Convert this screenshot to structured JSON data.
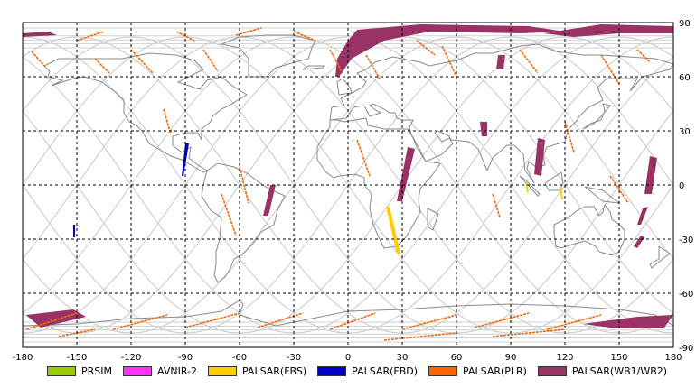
{
  "chart_data": {
    "type": "map",
    "title": "",
    "xlim": [
      -180,
      180
    ],
    "ylim": [
      -90,
      90
    ],
    "x_ticks": [
      "-180",
      "-150",
      "-120",
      "-90",
      "-60",
      "-30",
      "0",
      "30",
      "60",
      "90",
      "120",
      "150",
      "180"
    ],
    "y_ticks": [
      "90",
      "60",
      "30",
      "0",
      "-30",
      "-60",
      "-90"
    ],
    "grid": true,
    "legend_position": "bottom",
    "legend": [
      {
        "label": "PRSIM",
        "color": "#99cc00"
      },
      {
        "label": "AVNIR-2",
        "color": "#ff33ff"
      },
      {
        "label": "PALSAR(FBS)",
        "color": "#ffcc00"
      },
      {
        "label": "PALSAR(FBD)",
        "color": "#0000cc"
      },
      {
        "label": "PALSAR(PLR)",
        "color": "#ff6600"
      },
      {
        "label": "PALSAR(WB1/WB2)",
        "color": "#993366"
      }
    ],
    "coverage": [
      {
        "sensor": "PALSAR(WB1/WB2)",
        "polygon": [
          [
            -180,
            84
          ],
          [
            -166,
            85
          ],
          [
            -161,
            83
          ],
          [
            -180,
            82
          ]
        ]
      },
      {
        "sensor": "PALSAR(WB1/WB2)",
        "polygon": [
          [
            5,
            86
          ],
          [
            40,
            89
          ],
          [
            100,
            88
          ],
          [
            120,
            85
          ],
          [
            95,
            84
          ],
          [
            45,
            85
          ],
          [
            20,
            80
          ],
          [
            2,
            70
          ],
          [
            -5,
            60
          ],
          [
            -7,
            60
          ],
          [
            -6,
            70
          ],
          [
            0,
            80
          ]
        ]
      },
      {
        "sensor": "PALSAR(WB1/WB2)",
        "polygon": [
          [
            108,
            84
          ],
          [
            140,
            89
          ],
          [
            180,
            88
          ],
          [
            180,
            84
          ],
          [
            150,
            84
          ],
          [
            125,
            82
          ]
        ]
      },
      {
        "sensor": "PALSAR(WB1/WB2)",
        "polygon": [
          [
            83,
            72
          ],
          [
            87,
            72
          ],
          [
            86,
            64
          ],
          [
            82,
            64
          ]
        ]
      },
      {
        "sensor": "PALSAR(WB1/WB2)",
        "polygon": [
          [
            73,
            35
          ],
          [
            77,
            35
          ],
          [
            77,
            27
          ],
          [
            74,
            27
          ]
        ]
      },
      {
        "sensor": "PALSAR(WB1/WB2)",
        "polygon": [
          [
            105,
            26
          ],
          [
            109,
            25
          ],
          [
            107,
            5
          ],
          [
            103,
            6
          ]
        ]
      },
      {
        "sensor": "PALSAR(WB1/WB2)",
        "polygon": [
          [
            33,
            21
          ],
          [
            37,
            20
          ],
          [
            30,
            -9
          ],
          [
            27,
            -9
          ]
        ]
      },
      {
        "sensor": "PALSAR(WB1/WB2)",
        "polygon": [
          [
            -43,
            0
          ],
          [
            -40,
            0
          ],
          [
            -44,
            -17
          ],
          [
            -47,
            -17
          ]
        ]
      },
      {
        "sensor": "PALSAR(WB1/WB2)",
        "polygon": [
          [
            167,
            16
          ],
          [
            171,
            15
          ],
          [
            168,
            -5
          ],
          [
            164,
            -5
          ]
        ]
      },
      {
        "sensor": "PALSAR(WB1/WB2)",
        "polygon": [
          [
            163,
            -13
          ],
          [
            166,
            -12
          ],
          [
            162,
            -22
          ],
          [
            160,
            -22
          ]
        ]
      },
      {
        "sensor": "PALSAR(WB1/WB2)",
        "polygon": [
          [
            162,
            -28
          ],
          [
            164,
            -29
          ],
          [
            160,
            -35
          ],
          [
            158,
            -34
          ]
        ]
      },
      {
        "sensor": "PALSAR(WB1/WB2)",
        "polygon": [
          [
            -178,
            -72
          ],
          [
            -152,
            -69
          ],
          [
            -145,
            -73
          ],
          [
            -170,
            -79
          ]
        ]
      },
      {
        "sensor": "PALSAR(WB1/WB2)",
        "polygon": [
          [
            130,
            -77
          ],
          [
            160,
            -73
          ],
          [
            180,
            -72
          ],
          [
            175,
            -79
          ],
          [
            145,
            -79
          ]
        ]
      },
      {
        "sensor": "PALSAR(FBD)",
        "polygon": [
          [
            -152,
            -22
          ],
          [
            -151,
            -22
          ],
          [
            -151,
            -29
          ],
          [
            -152,
            -29
          ]
        ]
      },
      {
        "sensor": "PALSAR(FBD)",
        "polygon": [
          [
            -90,
            23
          ],
          [
            -88,
            23
          ],
          [
            -91,
            5
          ],
          [
            -92,
            5
          ]
        ]
      },
      {
        "sensor": "PALSAR(FBS)",
        "polygon": [
          [
            21,
            -12
          ],
          [
            23,
            -12
          ],
          [
            29,
            -38
          ],
          [
            27,
            -38
          ]
        ]
      },
      {
        "sensor": "PALSAR(FBS)",
        "polygon": [
          [
            98,
            1
          ],
          [
            99,
            1
          ],
          [
            100,
            -4
          ],
          [
            99,
            -4
          ]
        ]
      },
      {
        "sensor": "PALSAR(FBS)",
        "polygon": [
          [
            117,
            -1
          ],
          [
            118,
            -1
          ],
          [
            119,
            -8
          ],
          [
            118,
            -8
          ]
        ]
      }
    ],
    "plr_tracks": [
      [
        [
          -150,
          80
        ],
        [
          -135,
          85
        ]
      ],
      [
        [
          -95,
          85
        ],
        [
          -85,
          80
        ]
      ],
      [
        [
          -62,
          83
        ],
        [
          -48,
          87
        ]
      ],
      [
        [
          -30,
          85
        ],
        [
          -18,
          80
        ]
      ],
      [
        [
          -175,
          74
        ],
        [
          -168,
          66
        ]
      ],
      [
        [
          -120,
          75
        ],
        [
          -108,
          62
        ]
      ],
      [
        [
          -140,
          70
        ],
        [
          -132,
          62
        ]
      ],
      [
        [
          -80,
          75
        ],
        [
          -72,
          63
        ]
      ],
      [
        [
          -10,
          75
        ],
        [
          -3,
          62
        ]
      ],
      [
        [
          10,
          72
        ],
        [
          18,
          58
        ]
      ],
      [
        [
          38,
          80
        ],
        [
          48,
          72
        ]
      ],
      [
        [
          52,
          77
        ],
        [
          60,
          60
        ]
      ],
      [
        [
          95,
          75
        ],
        [
          105,
          62
        ]
      ],
      [
        [
          140,
          72
        ],
        [
          150,
          56
        ]
      ],
      [
        [
          160,
          75
        ],
        [
          167,
          68
        ]
      ],
      [
        [
          -102,
          42
        ],
        [
          -98,
          28
        ]
      ],
      [
        [
          -60,
          10
        ],
        [
          -55,
          -10
        ]
      ],
      [
        [
          -70,
          -5
        ],
        [
          -62,
          -28
        ]
      ],
      [
        [
          5,
          25
        ],
        [
          12,
          5
        ]
      ],
      [
        [
          120,
          35
        ],
        [
          125,
          18
        ]
      ],
      [
        [
          145,
          5
        ],
        [
          155,
          -10
        ]
      ],
      [
        [
          80,
          -5
        ],
        [
          84,
          -18
        ]
      ],
      [
        [
          -178,
          -80
        ],
        [
          -150,
          -71
        ]
      ],
      [
        [
          -130,
          -80
        ],
        [
          -100,
          -72
        ]
      ],
      [
        [
          -90,
          -79
        ],
        [
          -60,
          -71
        ]
      ],
      [
        [
          -50,
          -79
        ],
        [
          -25,
          -71
        ]
      ],
      [
        [
          -10,
          -80
        ],
        [
          15,
          -71
        ]
      ],
      [
        [
          30,
          -80
        ],
        [
          60,
          -72
        ]
      ],
      [
        [
          70,
          -79
        ],
        [
          100,
          -71
        ]
      ],
      [
        [
          110,
          -80
        ],
        [
          140,
          -72
        ]
      ],
      [
        [
          -160,
          -84
        ],
        [
          -140,
          -80
        ]
      ],
      [
        [
          20,
          -86
        ],
        [
          60,
          -82
        ]
      ],
      [
        [
          80,
          -84
        ],
        [
          120,
          -80
        ]
      ]
    ]
  }
}
